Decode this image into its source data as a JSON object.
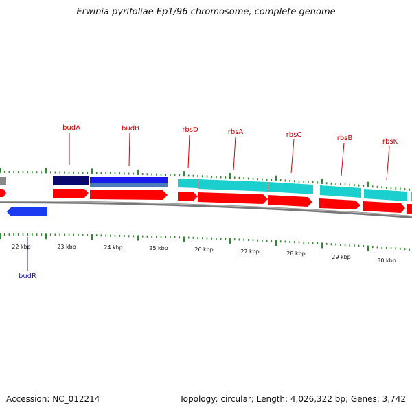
{
  "title": "Erwinia pyrifoliae Ep1/96 chromosome, complete genome",
  "footer": {
    "accession": "Accession: NC_012214",
    "summary": "Topology: circular; Length: 4,026,322 bp; Genes: 3,742"
  },
  "colors": {
    "background": "#ffffff",
    "backbone": "#888888",
    "tick": "#2e8b2e",
    "cds": "#ff0000",
    "bud_gene": "#1a1aee",
    "bud_gene_dark": "#0a0a6e",
    "rbs_gene": "#1ccfcf",
    "reverse_gene": "#1a3cee",
    "label_top": "#cc0000",
    "label_bottom": "#1a1aaa"
  },
  "scale_labels": [
    "22 kbp",
    "23 kbp",
    "24 kbp",
    "25 kbp",
    "26 kbp",
    "27 kbp",
    "28 kbp",
    "29 kbp",
    "30 kbp"
  ],
  "forward_genes": [
    {
      "name": "budA"
    },
    {
      "name": "budB"
    },
    {
      "name": "rbsD"
    },
    {
      "name": "rbsA"
    },
    {
      "name": "rbsC"
    },
    {
      "name": "rbsB"
    },
    {
      "name": "rbsK"
    }
  ],
  "reverse_genes": [
    {
      "name": "budR"
    }
  ]
}
